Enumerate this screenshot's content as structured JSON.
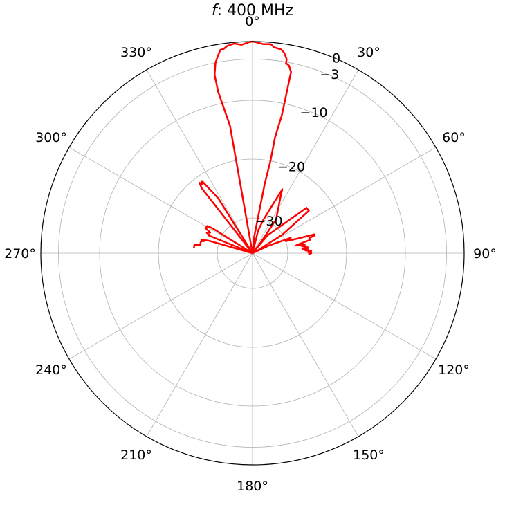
{
  "chart_data": {
    "type": "polar-line",
    "title_var": "f",
    "title_rest": ": 400 MHz",
    "theta_zero": "top",
    "theta_direction": "clockwise",
    "theta_ticks": [
      "0°",
      "30°",
      "60°",
      "90°",
      "120°",
      "150°",
      "180°",
      "210°",
      "240°",
      "270°",
      "300°",
      "330°"
    ],
    "r_ticks": [
      {
        "value": 0,
        "label": "0"
      },
      {
        "value": -3,
        "label": "−3"
      },
      {
        "value": -10,
        "label": "−10"
      },
      {
        "value": -20,
        "label": "−20"
      },
      {
        "value": -30,
        "label": "−30"
      }
    ],
    "r_range": [
      -36,
      0
    ],
    "grid": true,
    "series": [
      {
        "color": "#ff0000",
        "theta_r": [
          [
            275,
            -26
          ],
          [
            276,
            -26
          ],
          [
            278,
            -26
          ],
          [
            279,
            -27
          ],
          [
            281,
            -27
          ],
          [
            283,
            -27
          ],
          [
            284,
            -27.5
          ],
          [
            285,
            -27
          ],
          [
            286,
            -28.5
          ],
          [
            286,
            -36
          ],
          [
            290,
            -36
          ],
          [
            292,
            -28
          ],
          [
            293,
            -28
          ],
          [
            294,
            -27.5
          ],
          [
            296,
            -28
          ],
          [
            298,
            -27
          ],
          [
            299,
            -27
          ],
          [
            300,
            -27
          ],
          [
            301,
            -27
          ],
          [
            302,
            -28
          ],
          [
            306,
            -36
          ],
          [
            320,
            -36
          ],
          [
            322,
            -26
          ],
          [
            322,
            -22
          ],
          [
            323,
            -21
          ],
          [
            324,
            -21.5
          ],
          [
            325,
            -21
          ],
          [
            328,
            -25
          ],
          [
            354,
            -36
          ],
          [
            356,
            -36
          ],
          [
            350,
            -14
          ],
          [
            348,
            -8
          ],
          [
            348,
            -5
          ],
          [
            349,
            -3
          ],
          [
            350,
            -2
          ],
          [
            351,
            -1
          ],
          [
            352,
            -0.9
          ],
          [
            353,
            -0.5
          ],
          [
            355,
            -0.2
          ],
          [
            357,
            -0.5
          ],
          [
            359,
            -0.1
          ],
          [
            0,
            0
          ],
          [
            1,
            -0.1
          ],
          [
            3,
            -0.4
          ],
          [
            5,
            -0.3
          ],
          [
            6,
            -0.8
          ],
          [
            8,
            -1
          ],
          [
            9,
            -1.5
          ],
          [
            10,
            -2.5
          ],
          [
            10,
            -3.2
          ],
          [
            11,
            -3.5
          ],
          [
            12,
            -4.5
          ],
          [
            12,
            -5.5
          ],
          [
            12,
            -8
          ],
          [
            12,
            -12
          ],
          [
            11,
            -16
          ],
          [
            11,
            -20
          ],
          [
            10,
            -24
          ],
          [
            6,
            -33
          ],
          [
            5,
            -36
          ],
          [
            15,
            -36
          ],
          [
            14,
            -32
          ],
          [
            18,
            -30
          ],
          [
            25,
            -24
          ],
          [
            26,
            -25
          ],
          [
            35,
            -29
          ],
          [
            38,
            -34
          ],
          [
            40,
            -36
          ],
          [
            45,
            -36
          ],
          [
            40,
            -32
          ],
          [
            50,
            -24
          ],
          [
            53,
            -24
          ],
          [
            54,
            -26
          ],
          [
            58,
            -30
          ],
          [
            62,
            -35
          ],
          [
            62,
            -36
          ],
          [
            70,
            -36
          ],
          [
            65,
            -33
          ],
          [
            68,
            -29
          ],
          [
            70,
            -30
          ],
          [
            72,
            -28
          ],
          [
            73,
            -25
          ],
          [
            74,
            -25
          ],
          [
            75,
            -26
          ],
          [
            77,
            -26
          ],
          [
            79,
            -28
          ],
          [
            80,
            -28.5
          ],
          [
            81,
            -27
          ],
          [
            82,
            -27.5
          ],
          [
            84,
            -26.5
          ],
          [
            85,
            -27.5
          ],
          [
            86,
            -26.5
          ],
          [
            87,
            -27
          ],
          [
            88,
            -26
          ],
          [
            89,
            -26.5
          ],
          [
            90,
            -26
          ],
          [
            91,
            -26.5
          ]
        ]
      }
    ]
  }
}
